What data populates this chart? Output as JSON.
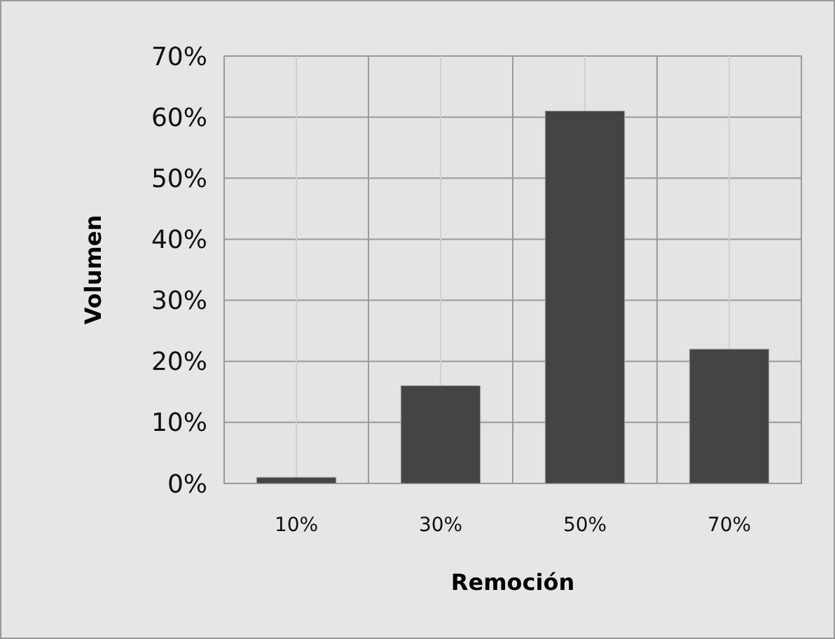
{
  "chart_data": {
    "type": "bar",
    "xlabel": "Remoción",
    "ylabel": "Volumen",
    "categories": [
      "10%",
      "30%",
      "50%",
      "70%"
    ],
    "values": [
      1,
      16,
      61,
      22
    ],
    "color": "#444444",
    "ylim": [
      0,
      70
    ],
    "yticks": [
      {
        "value": 0,
        "label": "0%"
      },
      {
        "value": 10,
        "label": "10%"
      },
      {
        "value": 20,
        "label": "20%"
      },
      {
        "value": 30,
        "label": "30%"
      },
      {
        "value": 40,
        "label": "40%"
      },
      {
        "value": 50,
        "label": "50%"
      },
      {
        "value": 60,
        "label": "60%"
      },
      {
        "value": 70,
        "label": "70%"
      }
    ],
    "grid": true
  }
}
